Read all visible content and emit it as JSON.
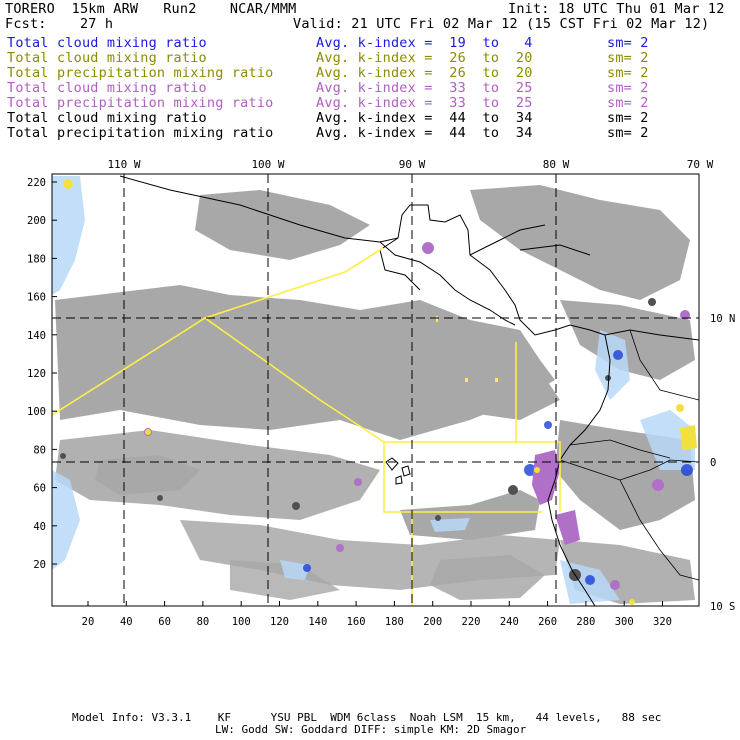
{
  "header": {
    "model": "TORERO  15km ARW   Run2    NCAR/MMM",
    "init": "Init: 18 UTC Thu 01 Mar 12",
    "fcst": "Fcst:    27 h",
    "valid": "Valid: 21 UTC Fri 02 Mar 12 (15 CST Fri 02 Mar 12)"
  },
  "colors": {
    "blue": "#1a1adb",
    "olive": "#8c8c00",
    "purple": "#b060c0",
    "black": "#000000",
    "cloud_gray": "#a8a8a8",
    "dark_gray": "#505050",
    "yellow_line": "#ffee44"
  },
  "legend": [
    {
      "field": "Total cloud mixing ratio",
      "kindex": "Avg. k-index =  19  to   4",
      "sm": "sm= 2",
      "color": "#1a1adb"
    },
    {
      "field": "Total cloud mixing ratio",
      "kindex": "Avg. k-index =  26  to  20",
      "sm": "sm= 2",
      "color": "#8c8c00"
    },
    {
      "field": "Total precipitation mixing ratio",
      "kindex": "Avg. k-index =  26  to  20",
      "sm": "sm= 2",
      "color": "#8c8c00"
    },
    {
      "field": "Total cloud mixing ratio",
      "kindex": "Avg. k-index =  33  to  25",
      "sm": "sm= 2",
      "color": "#b060c0"
    },
    {
      "field": "Total precipitation mixing ratio",
      "kindex": "Avg. k-index =  33  to  25",
      "sm": "sm= 2",
      "color": "#b060c0"
    },
    {
      "field": "Total cloud mixing ratio",
      "kindex": "Avg. k-index =  44  to  34",
      "sm": "sm= 2",
      "color": "#000000"
    },
    {
      "field": "Total precipitation mixing ratio",
      "kindex": "Avg. k-index =  44  to  34",
      "sm": "sm= 2",
      "color": "#000000"
    }
  ],
  "map": {
    "lon_labels": [
      "110 W",
      "100 W",
      "90 W",
      "80 W",
      "70 W"
    ],
    "lat_labels": [
      "10 N",
      "0",
      "10 S"
    ],
    "y_ticks": [
      "220",
      "200",
      "180",
      "160",
      "140",
      "120",
      "100",
      "80",
      "60",
      "40",
      "20"
    ],
    "x_ticks": [
      "20",
      "40",
      "60",
      "80",
      "100",
      "120",
      "140",
      "160",
      "180",
      "200",
      "220",
      "240",
      "260",
      "280",
      "300",
      "320"
    ]
  },
  "footer": {
    "line1": "Model Info: V3.3.1    KF      YSU PBL  WDM 6class  Noah LSM  15 km,   44 levels,   88 sec",
    "line2": "LW: Godd SW: Goddard DIFF: simple KM: 2D Smagor"
  }
}
